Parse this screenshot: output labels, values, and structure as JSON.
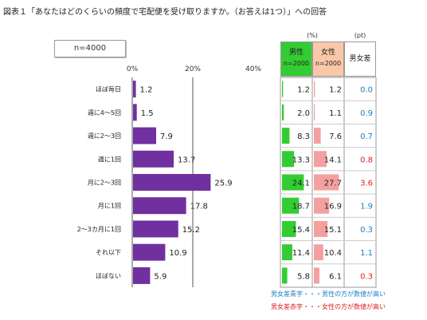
{
  "title": "図表１「あなたはどのくらいの頻度で宅配便を受け取りますか。（お答えは1つ）」への回答",
  "sample": "n=4000",
  "columns": {
    "male_label": "男性",
    "male_n": "n=2000",
    "female_label": "女性",
    "female_n": "n=2000",
    "diff_label": "男女差",
    "unit_pct": "(%)",
    "unit_pt": "(pt)"
  },
  "legend": {
    "male_higher": "男女差青字・・・男性の方が数値が高い",
    "female_higher": "男女差赤字・・・女性の方が数値が高い",
    "male_color": "#1a7fc1",
    "female_color": "#e02020"
  },
  "colors": {
    "bar": "#7030a0",
    "male_bar": "#33cc33",
    "female_bar": "#f4a0a0",
    "male_header": "#33cc33",
    "female_header": "#fac8a8",
    "diff_male": "#1a7fc1",
    "diff_female": "#e02020"
  },
  "chart_data": {
    "type": "bar",
    "orientation": "horizontal",
    "categories": [
      "ほぼ毎日",
      "週に4～5回",
      "週に2～3回",
      "週に1回",
      "月に2～3回",
      "月に1回",
      "2～3カ月に1回",
      "それ以下",
      "ほぼない"
    ],
    "values": [
      1.2,
      1.5,
      7.9,
      13.7,
      25.9,
      17.8,
      15.2,
      10.9,
      5.9
    ],
    "x_ticks": [
      "0%",
      "20%",
      "40%"
    ],
    "xlim": [
      0,
      40
    ],
    "male": [
      1.2,
      2.0,
      8.3,
      13.3,
      24.1,
      18.7,
      15.4,
      11.4,
      5.8
    ],
    "female": [
      1.2,
      1.1,
      7.6,
      14.1,
      27.7,
      16.9,
      15.1,
      10.4,
      6.1
    ],
    "diff": [
      "0.0",
      "0.9",
      "0.7",
      "0.8",
      "3.6",
      "1.9",
      "0.3",
      "1.1",
      "0.3"
    ],
    "diff_higher": [
      "none",
      "male",
      "male",
      "female",
      "female",
      "male",
      "male",
      "male",
      "female"
    ]
  }
}
